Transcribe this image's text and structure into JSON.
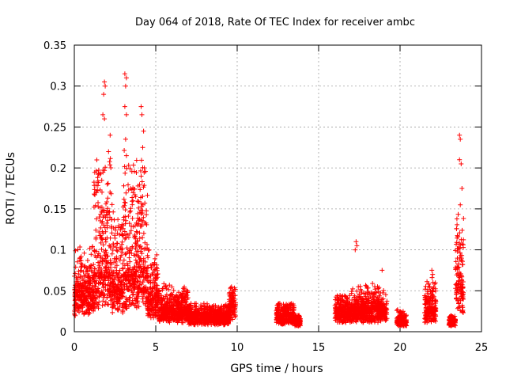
{
  "chart_data": {
    "type": "scatter",
    "title": "Day 064 of 2018, Rate Of TEC Index for receiver ambc",
    "xlabel": "GPS time / hours",
    "ylabel": "ROTI / TECUs",
    "xlim": [
      0,
      25
    ],
    "ylim": [
      0,
      0.35
    ],
    "xticks": [
      0,
      5,
      10,
      15,
      20,
      25
    ],
    "xtick_labels": [
      "0",
      "5",
      "10",
      "15",
      "20",
      "25"
    ],
    "yticks": [
      0,
      0.05,
      0.1,
      0.15,
      0.2,
      0.25,
      0.3,
      0.35
    ],
    "ytick_labels": [
      "0",
      "0.05",
      "0.1",
      "0.15",
      "0.2",
      "0.25",
      "0.3",
      "0.35"
    ],
    "grid": true,
    "marker": "+",
    "color": "#ff0000",
    "segments": [
      {
        "from": 0.0,
        "to": 1.2,
        "base": 0.035,
        "spread": 0.06,
        "peak": 0.11
      },
      {
        "from": 1.2,
        "to": 2.3,
        "base": 0.05,
        "spread": 0.16,
        "peak": 0.305
      },
      {
        "from": 2.3,
        "to": 3.0,
        "base": 0.04,
        "spread": 0.1,
        "peak": 0.2
      },
      {
        "from": 3.0,
        "to": 3.4,
        "base": 0.05,
        "spread": 0.18,
        "peak": 0.315
      },
      {
        "from": 3.4,
        "to": 4.5,
        "base": 0.05,
        "spread": 0.15,
        "peak": 0.275
      },
      {
        "from": 4.5,
        "to": 5.2,
        "base": 0.03,
        "spread": 0.06,
        "peak": 0.14
      },
      {
        "from": 5.2,
        "to": 7.0,
        "base": 0.02,
        "spread": 0.03,
        "peak": 0.06
      },
      {
        "from": 7.0,
        "to": 9.5,
        "base": 0.015,
        "spread": 0.015,
        "peak": 0.035
      },
      {
        "from": 9.5,
        "to": 9.9,
        "base": 0.025,
        "spread": 0.03,
        "peak": 0.055
      },
      {
        "from": 12.4,
        "to": 13.5,
        "base": 0.015,
        "spread": 0.02,
        "peak": 0.035
      },
      {
        "from": 13.5,
        "to": 13.9,
        "base": 0.01,
        "spread": 0.01,
        "peak": 0.02
      },
      {
        "from": 16.0,
        "to": 17.0,
        "base": 0.02,
        "spread": 0.025,
        "peak": 0.045
      },
      {
        "from": 17.0,
        "to": 17.5,
        "base": 0.02,
        "spread": 0.03,
        "peak": 0.11
      },
      {
        "from": 17.5,
        "to": 19.2,
        "base": 0.02,
        "spread": 0.03,
        "peak": 0.075
      },
      {
        "from": 19.8,
        "to": 20.4,
        "base": 0.01,
        "spread": 0.015,
        "peak": 0.03
      },
      {
        "from": 21.5,
        "to": 22.2,
        "base": 0.02,
        "spread": 0.04,
        "peak": 0.075
      },
      {
        "from": 23.0,
        "to": 23.4,
        "base": 0.012,
        "spread": 0.005,
        "peak": 0.02
      },
      {
        "from": 23.4,
        "to": 23.9,
        "base": 0.04,
        "spread": 0.09,
        "peak": 0.24
      }
    ],
    "highlights": [
      [
        1.85,
        0.305
      ],
      [
        1.9,
        0.3
      ],
      [
        1.8,
        0.29
      ],
      [
        1.75,
        0.265
      ],
      [
        1.85,
        0.26
      ],
      [
        2.2,
        0.24
      ],
      [
        2.1,
        0.22
      ],
      [
        3.1,
        0.315
      ],
      [
        3.2,
        0.31
      ],
      [
        3.15,
        0.3
      ],
      [
        3.1,
        0.275
      ],
      [
        3.2,
        0.265
      ],
      [
        3.15,
        0.235
      ],
      [
        3.2,
        0.215
      ],
      [
        4.1,
        0.275
      ],
      [
        4.15,
        0.265
      ],
      [
        4.25,
        0.245
      ],
      [
        4.2,
        0.225
      ],
      [
        4.3,
        0.2
      ],
      [
        4.1,
        0.19
      ],
      [
        23.65,
        0.24
      ],
      [
        23.7,
        0.235
      ],
      [
        23.65,
        0.21
      ],
      [
        23.75,
        0.205
      ],
      [
        23.8,
        0.175
      ],
      [
        23.7,
        0.155
      ],
      [
        17.3,
        0.11
      ],
      [
        17.35,
        0.105
      ],
      [
        17.25,
        0.1
      ],
      [
        18.9,
        0.075
      ],
      [
        21.95,
        0.075
      ],
      [
        22.0,
        0.07
      ]
    ]
  }
}
